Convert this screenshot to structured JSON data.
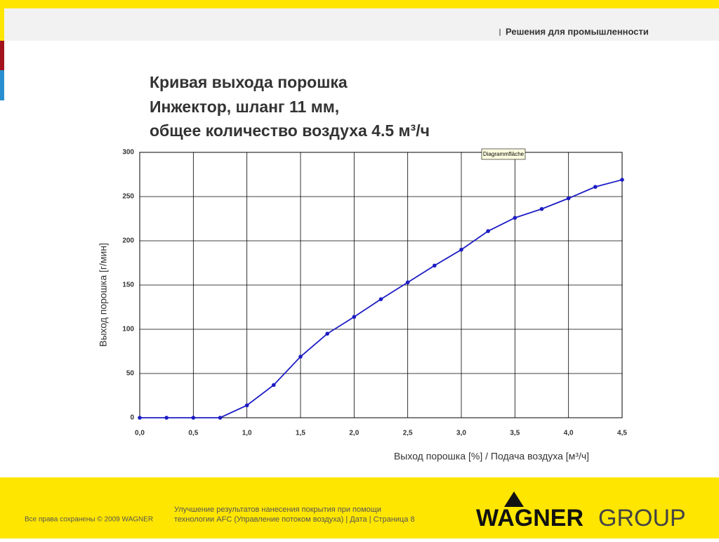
{
  "header": {
    "text": "Решения для промышленности"
  },
  "chart_data": {
    "type": "line",
    "title": [
      "Кривая выхода порошка",
      "Инжектор, шланг 11 мм,",
      "общее количество воздуха 4.5 м³/ч"
    ],
    "x_label": "Выход порошка [%] / Подача воздуха [м³/ч]",
    "y_label": "Выход порошка [г/мин]",
    "annotation": "Diagrammfläche",
    "x": [
      0,
      0.25,
      0.5,
      0.75,
      1.0,
      1.25,
      1.5,
      1.75,
      2.0,
      2.25,
      2.5,
      2.75,
      3.0,
      3.25,
      3.5,
      3.75,
      4.0,
      4.25,
      4.5
    ],
    "series": [
      {
        "color": "#1c1cc4",
        "values": [
          0,
          0,
          0,
          0,
          14,
          37,
          69,
          95,
          114,
          134,
          153,
          172,
          190,
          211,
          226,
          236,
          248,
          261,
          269
        ]
      }
    ],
    "xlim": [
      0,
      4.5
    ],
    "xticks": [
      {
        "value": 0,
        "label": "0,0"
      },
      {
        "value": 0.5,
        "label": "0,5"
      },
      {
        "value": 1,
        "label": "1,0"
      },
      {
        "value": 1.5,
        "label": "1,5"
      },
      {
        "value": 2,
        "label": "2,0"
      },
      {
        "value": 2.5,
        "label": "2,5"
      },
      {
        "value": 3,
        "label": "3,0"
      },
      {
        "value": 3.5,
        "label": "3,5"
      },
      {
        "value": 4,
        "label": "4,0"
      },
      {
        "value": 4.5,
        "label": "4,5"
      }
    ],
    "ylim": [
      0,
      300
    ],
    "yticks": [
      0,
      50,
      100,
      150,
      200,
      250,
      300
    ],
    "grid": true
  },
  "footer": {
    "copyright": "Все права сохранены © 2009 WAGNER",
    "lines": [
      "Улучшение результатов нанесения покрытия при помощи",
      "технологии AFC (Управление потоком воздуха) | Дата | Страница 8"
    ],
    "logo": [
      "WAGNER",
      "GROUP"
    ]
  }
}
